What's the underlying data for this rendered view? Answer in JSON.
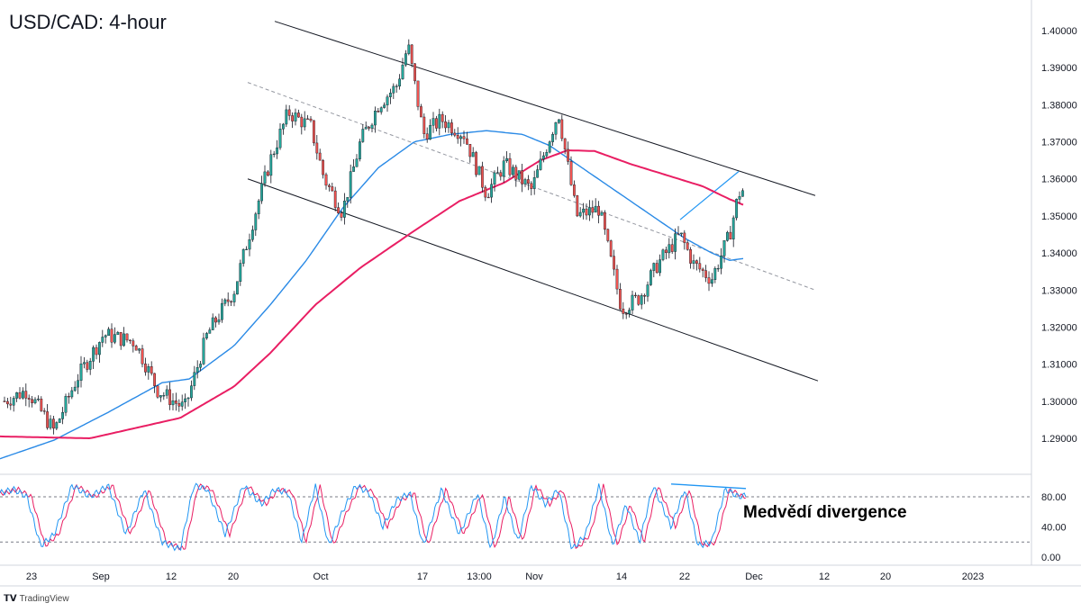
{
  "title": "USD/CAD: 4-hour",
  "annotation": "Medvědí divergence",
  "brand": "TradingView",
  "colors": {
    "up": "#26a69a",
    "down": "#ef5350",
    "candle_body": "#131722",
    "ma_fast": "#2a8ae6",
    "ma_slow": "#e91e63",
    "channel": "#131722",
    "midline": "#9598a1",
    "stoch_k": "#2196f3",
    "stoch_d": "#e91e63",
    "divergence": "#2196f3"
  },
  "chart_data": {
    "type": "line",
    "title": "USD/CAD: 4-hour",
    "y_axis": {
      "min": 1.2825,
      "max": 1.4025,
      "ticks": [
        "1.40000",
        "1.39000",
        "1.38000",
        "1.37000",
        "1.36000",
        "1.35000",
        "1.34000",
        "1.33000",
        "1.32000",
        "1.31000",
        "1.30000",
        "1.29000"
      ]
    },
    "x_axis": {
      "ticks": [
        "23",
        "Sep",
        "12",
        "20",
        "Oct",
        "17",
        "13:00",
        "Nov",
        "14",
        "22",
        "Dec",
        "12",
        "20",
        "2023"
      ]
    },
    "price_anchors": {
      "x": [
        0,
        5,
        30,
        60,
        85,
        115,
        150,
        175,
        205,
        230,
        260,
        280,
        300,
        320,
        345,
        360,
        380,
        400,
        420,
        440,
        453,
        470,
        490,
        515,
        540,
        560,
        590,
        620,
        640,
        665,
        690,
        710,
        730,
        755,
        770,
        790,
        810,
        820,
        825
      ],
      "y": [
        1.29,
        1.3,
        1.303,
        1.292,
        1.306,
        1.318,
        1.316,
        1.303,
        1.298,
        1.318,
        1.33,
        1.348,
        1.365,
        1.378,
        1.374,
        1.36,
        1.351,
        1.37,
        1.38,
        1.385,
        1.396,
        1.372,
        1.376,
        1.372,
        1.356,
        1.364,
        1.357,
        1.378,
        1.35,
        1.352,
        1.325,
        1.328,
        1.337,
        1.345,
        1.337,
        1.333,
        1.345,
        1.356,
        1.357
      ]
    },
    "series": [
      {
        "name": "",
        "type": "ma",
        "x": [
          0,
          60,
          120,
          180,
          210,
          260,
          300,
          340,
          380,
          420,
          460,
          500,
          540,
          580,
          610,
          640,
          670,
          700,
          730,
          760,
          790,
          810,
          825
        ],
        "values": [
          1.2845,
          1.2895,
          1.297,
          1.305,
          1.306,
          1.315,
          1.326,
          1.338,
          1.352,
          1.363,
          1.37,
          1.372,
          1.373,
          1.372,
          1.369,
          1.364,
          1.359,
          1.354,
          1.349,
          1.344,
          1.34,
          1.338,
          1.3385
        ]
      },
      {
        "name": "",
        "type": "ma",
        "x": [
          0,
          100,
          200,
          260,
          300,
          350,
          400,
          460,
          510,
          560,
          600,
          630,
          660,
          700,
          740,
          780,
          810,
          825
        ],
        "values": [
          1.2905,
          1.29,
          1.2955,
          1.304,
          1.313,
          1.326,
          1.336,
          1.346,
          1.354,
          1.359,
          1.365,
          1.3677,
          1.3675,
          1.364,
          1.361,
          1.358,
          1.3545,
          1.353
        ]
      }
    ],
    "channel": {
      "upper": [
        [
          305,
          1.4025
        ],
        [
          905,
          1.3555
        ]
      ],
      "lower": [
        [
          275,
          1.36
        ],
        [
          908,
          1.3055
        ]
      ],
      "mid": [
        [
          275,
          1.386
        ],
        [
          905,
          1.33
        ]
      ]
    },
    "divergence_price_line": [
      [
        755,
        1.349
      ],
      [
        820,
        1.362
      ]
    ],
    "stochastic": {
      "levels": [
        0,
        40,
        80
      ],
      "tick_labels": [
        "80.00",
        "40.00",
        "0.00"
      ],
      "overbought": 80,
      "oversold": 20,
      "k_anchors_x": [
        0,
        15,
        30,
        45,
        60,
        80,
        100,
        120,
        140,
        160,
        180,
        200,
        215,
        230,
        250,
        270,
        290,
        305,
        320,
        335,
        350,
        365,
        380,
        395,
        410,
        425,
        440,
        455,
        470,
        490,
        510,
        530,
        545,
        560,
        575,
        590,
        605,
        620,
        635,
        650,
        665,
        680,
        695,
        710,
        725,
        745,
        760,
        775,
        790,
        805,
        820,
        828
      ],
      "k_anchors_y": [
        85,
        90,
        80,
        15,
        30,
        95,
        80,
        95,
        30,
        90,
        20,
        10,
        95,
        90,
        30,
        95,
        70,
        90,
        85,
        20,
        95,
        15,
        60,
        95,
        85,
        40,
        75,
        85,
        15,
        90,
        30,
        85,
        10,
        80,
        20,
        95,
        70,
        90,
        10,
        30,
        95,
        15,
        70,
        20,
        95,
        40,
        90,
        15,
        20,
        90,
        80,
        82
      ],
      "divergence_line": [
        [
          745,
          97
        ],
        [
          828,
          91
        ]
      ]
    }
  }
}
